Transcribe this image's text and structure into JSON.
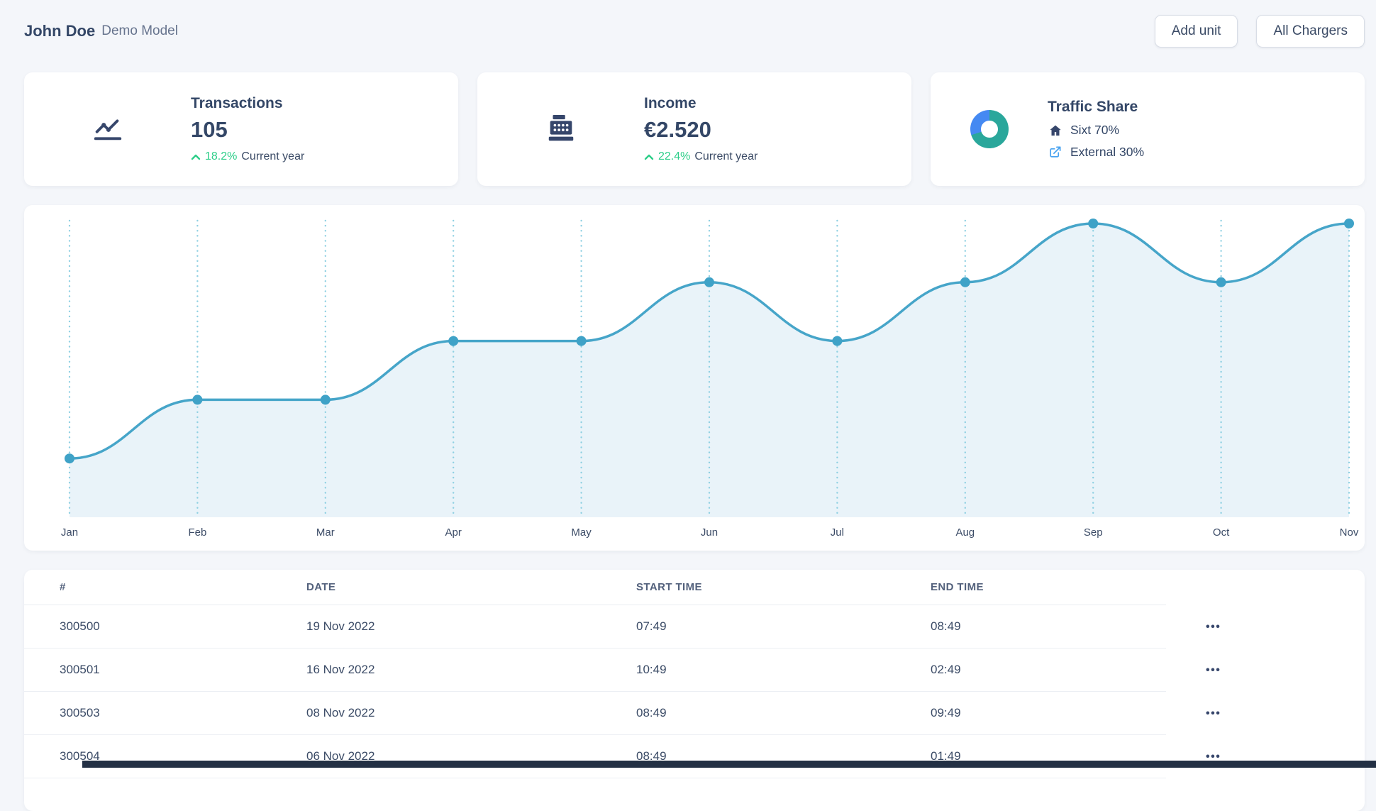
{
  "header": {
    "user_name": "John Doe",
    "subtitle": "Demo Model",
    "buttons": [
      {
        "label": "Add unit"
      },
      {
        "label": "All Chargers"
      }
    ]
  },
  "stats": {
    "transactions": {
      "title": "Transactions",
      "value": "105",
      "delta": "18.2%",
      "delta_direction": "up",
      "delta_caption": "Current year",
      "icon": "line-chart-icon"
    },
    "income": {
      "title": "Income",
      "value": "€2.520",
      "delta": "22.4%",
      "delta_direction": "up",
      "delta_caption": "Current year",
      "icon": "cash-register-icon"
    },
    "traffic": {
      "title": "Traffic Share",
      "icon": "donut-chart-icon",
      "items": [
        {
          "label": "Sixt 70%",
          "icon": "house-icon"
        },
        {
          "label": "External 30%",
          "icon": "external-link-icon"
        }
      ]
    }
  },
  "colors": {
    "accent_green": "#2dce89",
    "donut_teal": "#2aa79b",
    "donut_blue": "#4589f2",
    "external_link_blue": "#4aa3f0",
    "chart_line_blue": "#46a5c9"
  },
  "chart_data": {
    "type": "area",
    "x": [
      "Jan",
      "Feb",
      "Mar",
      "Apr",
      "May",
      "Jun",
      "Jul",
      "Aug",
      "Sep",
      "Oct",
      "Nov"
    ],
    "values": [
      1,
      2,
      2,
      3,
      3,
      4,
      3,
      4,
      5,
      4,
      5
    ],
    "title": "",
    "xlabel": "",
    "ylabel": "",
    "ylim": [
      0,
      5
    ],
    "y_axis_visible": false,
    "grid": "vertical-dotted",
    "legend": "none",
    "note": "values estimated from evenly-spaced point levels; no y-axis labels shown",
    "colors": {
      "line": "#46a5c9",
      "dot": "#3fa2c7",
      "fill": "#e9f3f9",
      "grid": "#8fd0e2",
      "label": "#3b4b66"
    }
  },
  "table": {
    "columns": [
      "#",
      "DATE",
      "START TIME",
      "END TIME"
    ],
    "row_action_icon": "•••",
    "rows": [
      {
        "id": "300500",
        "date": "19 Nov 2022",
        "start": "07:49",
        "end": "08:49"
      },
      {
        "id": "300501",
        "date": "16 Nov 2022",
        "start": "10:49",
        "end": "02:49"
      },
      {
        "id": "300503",
        "date": "08 Nov 2022",
        "start": "08:49",
        "end": "09:49"
      },
      {
        "id": "300504",
        "date": "06 Nov 2022",
        "start": "08:49",
        "end": "01:49"
      }
    ]
  }
}
